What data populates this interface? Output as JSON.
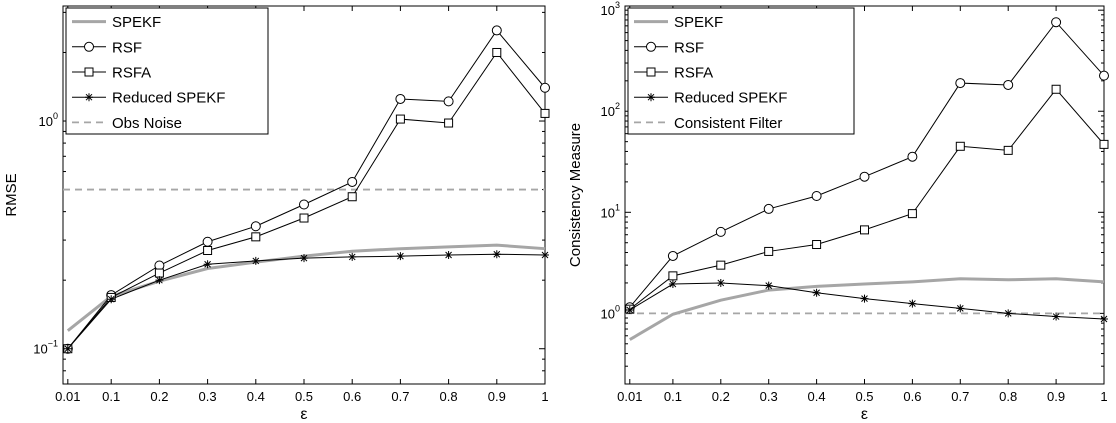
{
  "chart_data": [
    {
      "type": "line",
      "xlabel": "ε",
      "ylabel": "RMSE",
      "yscale": "log",
      "ylim": [
        0.07,
        3.2
      ],
      "xlim": [
        0,
        1
      ],
      "x": [
        0.01,
        0.1,
        0.2,
        0.3,
        0.4,
        0.5,
        0.6,
        0.7,
        0.8,
        0.9,
        1
      ],
      "x_tick_labels": [
        "0.01",
        "0.1",
        "0.2",
        "0.3",
        "0.4",
        "0.5",
        "0.6",
        "0.7",
        "0.8",
        "0.9",
        "1"
      ],
      "y_ticks": [
        {
          "value": 0.1,
          "base": "10",
          "exp": "−1"
        },
        {
          "value": 1,
          "base": "10",
          "exp": "0"
        }
      ],
      "grid": false,
      "legend_position": "top-left",
      "series": [
        {
          "name": "SPEKF",
          "style": "solid-gray",
          "color": "#a6a6a6",
          "values": [
            0.12,
            0.17,
            0.198,
            0.225,
            0.24,
            0.255,
            0.268,
            0.275,
            0.28,
            0.285,
            0.275
          ]
        },
        {
          "name": "RSF",
          "style": "line-circle",
          "color": "#000000",
          "values": [
            0.1,
            0.172,
            0.232,
            0.295,
            0.345,
            0.43,
            0.54,
            1.25,
            1.22,
            2.5,
            1.4
          ]
        },
        {
          "name": "RSFA",
          "style": "line-square",
          "color": "#000000",
          "values": [
            0.1,
            0.168,
            0.215,
            0.27,
            0.31,
            0.375,
            0.465,
            1.02,
            0.98,
            2.0,
            1.08
          ]
        },
        {
          "name": "Reduced SPEKF",
          "style": "line-star",
          "color": "#000000",
          "values": [
            0.1,
            0.165,
            0.2,
            0.235,
            0.243,
            0.25,
            0.253,
            0.255,
            0.258,
            0.26,
            0.258
          ]
        },
        {
          "name": "Obs Noise",
          "style": "dashed-gray",
          "color": "#a6a6a6",
          "values": [
            0.5,
            0.5,
            0.5,
            0.5,
            0.5,
            0.5,
            0.5,
            0.5,
            0.5,
            0.5,
            0.5
          ]
        }
      ]
    },
    {
      "type": "line",
      "xlabel": "ε",
      "ylabel": "Consistency Measure",
      "yscale": "log",
      "ylim": [
        0.2,
        1100
      ],
      "xlim": [
        0,
        1
      ],
      "x": [
        0.01,
        0.1,
        0.2,
        0.3,
        0.4,
        0.5,
        0.6,
        0.7,
        0.8,
        0.9,
        1
      ],
      "x_tick_labels": [
        "0.01",
        "0.1",
        "0.2",
        "0.3",
        "0.4",
        "0.5",
        "0.6",
        "0.7",
        "0.8",
        "0.9",
        "1"
      ],
      "y_ticks": [
        {
          "value": 1,
          "base": "10",
          "exp": "0"
        },
        {
          "value": 10,
          "base": "10",
          "exp": "1"
        },
        {
          "value": 100,
          "base": "10",
          "exp": "2"
        },
        {
          "value": 1000,
          "base": "10",
          "exp": "3"
        }
      ],
      "grid": false,
      "legend_position": "top-left",
      "series": [
        {
          "name": "SPEKF",
          "style": "solid-gray",
          "color": "#a6a6a6",
          "values": [
            0.55,
            0.98,
            1.35,
            1.7,
            1.85,
            1.95,
            2.05,
            2.2,
            2.15,
            2.2,
            2.05
          ]
        },
        {
          "name": "RSF",
          "style": "line-circle",
          "color": "#000000",
          "values": [
            1.15,
            3.7,
            6.4,
            10.8,
            14.5,
            22.5,
            35.5,
            190,
            182,
            760,
            225
          ]
        },
        {
          "name": "RSFA",
          "style": "line-square",
          "color": "#000000",
          "values": [
            1.1,
            2.35,
            3.0,
            4.1,
            4.8,
            6.7,
            9.7,
            45,
            41,
            165,
            47
          ]
        },
        {
          "name": "Reduced SPEKF",
          "style": "line-star",
          "color": "#000000",
          "values": [
            1.08,
            1.95,
            2.0,
            1.88,
            1.6,
            1.4,
            1.25,
            1.12,
            1.0,
            0.93,
            0.88
          ]
        },
        {
          "name": "Consistent Filter",
          "style": "dashed-gray",
          "color": "#a6a6a6",
          "values": [
            1,
            1,
            1,
            1,
            1,
            1,
            1,
            1,
            1,
            1,
            1
          ]
        }
      ]
    }
  ]
}
